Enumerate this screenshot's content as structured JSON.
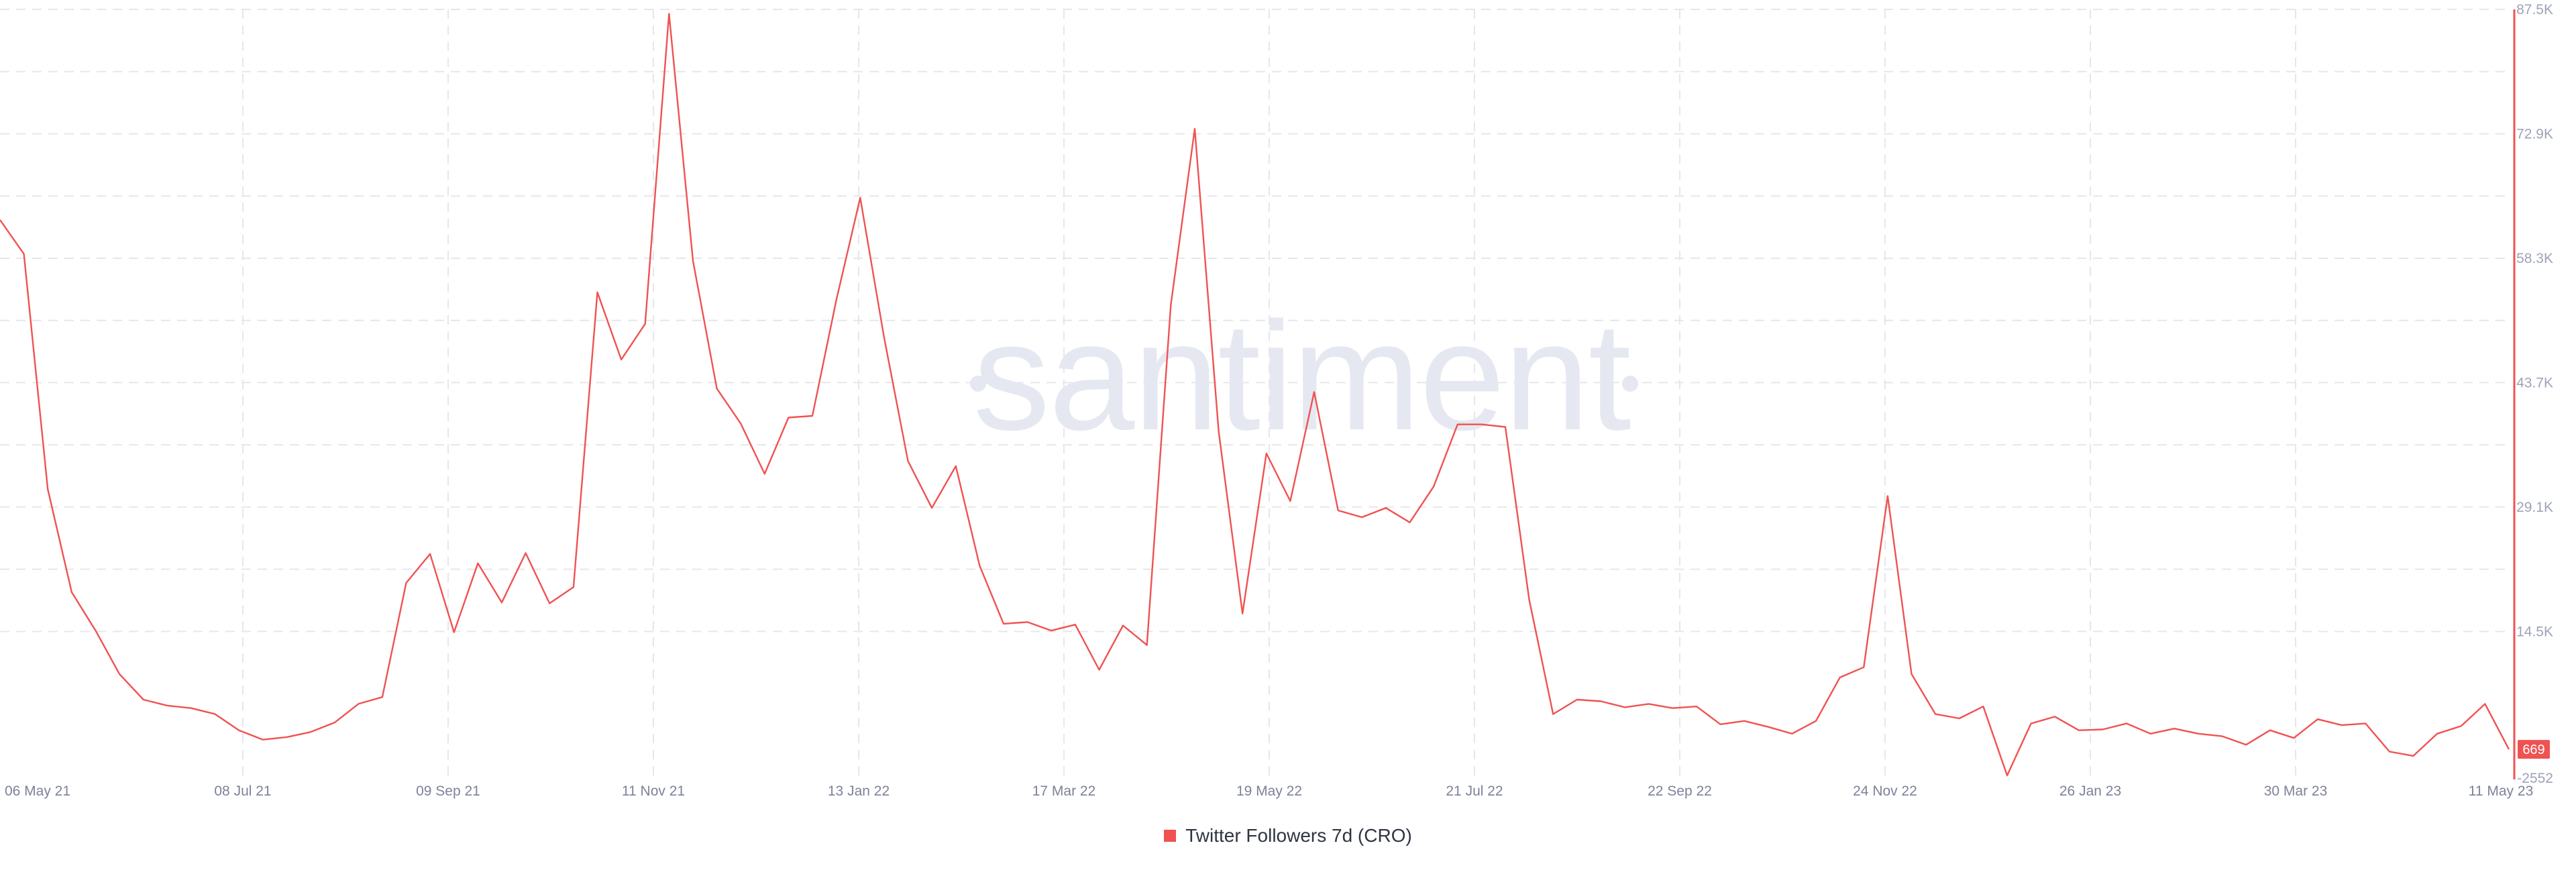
{
  "watermark": "santiment",
  "legend": {
    "label": "Twitter Followers 7d (CRO)"
  },
  "colors": {
    "line": "#f05252",
    "grid": "#e6e6ee",
    "axis": "#f05252",
    "badge_bg": "#f05252",
    "badge_text": "#ffffff"
  },
  "chart_data": {
    "type": "line",
    "title": "",
    "xlabel": "",
    "ylabel": "",
    "grid": true,
    "legend_placement": "bottom-center",
    "x_ticks": [
      "06 May 21",
      "08 Jul 21",
      "09 Sep 21",
      "11 Nov 21",
      "13 Jan 22",
      "17 Mar 22",
      "19 May 22",
      "21 Jul 22",
      "22 Sep 22",
      "24 Nov 22",
      "26 Jan 23",
      "30 Mar 23",
      "11 May 23"
    ],
    "y_ticks": [
      "87.5K",
      "72.9K",
      "58.3K",
      "43.7K",
      "29.1K",
      "14.5K",
      "-2552"
    ],
    "y_tick_values": [
      87500,
      72900,
      58300,
      43700,
      29100,
      14500,
      -2552
    ],
    "ylim": [
      -2552,
      87500
    ],
    "x_range": [
      "2021-05-06",
      "2023-05-11"
    ],
    "current_value_label": "669",
    "current_value": 669,
    "series": [
      {
        "name": "Twitter Followers 7d (CRO)",
        "x": [
          "2021-05-06",
          "2021-05-13",
          "2021-05-20",
          "2021-05-27",
          "2021-06-03",
          "2021-06-10",
          "2021-06-17",
          "2021-06-24",
          "2021-07-01",
          "2021-07-08",
          "2021-07-15",
          "2021-07-22",
          "2021-07-29",
          "2021-08-05",
          "2021-08-12",
          "2021-08-19",
          "2021-08-26",
          "2021-09-02",
          "2021-09-09",
          "2021-09-16",
          "2021-09-23",
          "2021-09-30",
          "2021-10-07",
          "2021-10-14",
          "2021-10-21",
          "2021-10-28",
          "2021-11-04",
          "2021-11-11",
          "2021-11-18",
          "2021-11-25",
          "2021-12-02",
          "2021-12-09",
          "2021-12-16",
          "2021-12-23",
          "2021-12-30",
          "2022-01-06",
          "2022-01-13",
          "2022-01-20",
          "2022-01-27",
          "2022-02-03",
          "2022-02-10",
          "2022-02-17",
          "2022-02-24",
          "2022-03-03",
          "2022-03-10",
          "2022-03-17",
          "2022-03-24",
          "2022-03-31",
          "2022-04-07",
          "2022-04-14",
          "2022-04-21",
          "2022-04-28",
          "2022-05-05",
          "2022-05-12",
          "2022-05-19",
          "2022-05-26",
          "2022-06-02",
          "2022-06-09",
          "2022-06-16",
          "2022-06-23",
          "2022-06-30",
          "2022-07-07",
          "2022-07-14",
          "2022-07-21",
          "2022-07-28",
          "2022-08-04",
          "2022-08-11",
          "2022-08-18",
          "2022-08-25",
          "2022-09-01",
          "2022-09-08",
          "2022-09-15",
          "2022-09-22",
          "2022-09-29",
          "2022-10-06",
          "2022-10-13",
          "2022-10-20",
          "2022-10-27",
          "2022-11-03",
          "2022-11-10",
          "2022-11-17",
          "2022-11-24",
          "2022-12-01",
          "2022-12-08",
          "2022-12-15",
          "2022-12-22",
          "2022-12-29",
          "2023-01-05",
          "2023-01-12",
          "2023-01-19",
          "2023-01-26",
          "2023-02-02",
          "2023-02-09",
          "2023-02-16",
          "2023-02-23",
          "2023-03-02",
          "2023-03-09",
          "2023-03-16",
          "2023-03-23",
          "2023-03-30",
          "2023-04-06",
          "2023-04-13",
          "2023-04-20",
          "2023-04-27",
          "2023-05-04",
          "2023-05-11"
        ],
        "values": [
          62800,
          58800,
          31200,
          19100,
          14600,
          9500,
          6500,
          5800,
          5500,
          4800,
          2900,
          1800,
          2100,
          2700,
          3800,
          6000,
          6800,
          20200,
          23600,
          14400,
          22500,
          17900,
          23700,
          17800,
          19700,
          54300,
          46400,
          50600,
          87000,
          58000,
          43000,
          38900,
          33000,
          39600,
          39800,
          53400,
          65400,
          49000,
          34500,
          29000,
          33900,
          22200,
          15400,
          15600,
          14600,
          15300,
          10000,
          15200,
          12900,
          52800,
          73500,
          38000,
          16600,
          35400,
          29800,
          42600,
          28700,
          27900,
          29000,
          27300,
          31500,
          38800,
          38800,
          38500,
          18200,
          4800,
          6500,
          6300,
          5600,
          6000,
          5500,
          5700,
          3600,
          4000,
          3300,
          2500,
          4000,
          9100,
          10300,
          30400,
          9500,
          4800,
          4300,
          5700,
          -2400,
          3700,
          4500,
          2900,
          3000,
          3700,
          2500,
          3100,
          2500,
          2200,
          1200,
          2900,
          2000,
          4200,
          3500,
          3700,
          400,
          -100,
          2500,
          3400,
          6000,
          669
        ]
      }
    ]
  }
}
